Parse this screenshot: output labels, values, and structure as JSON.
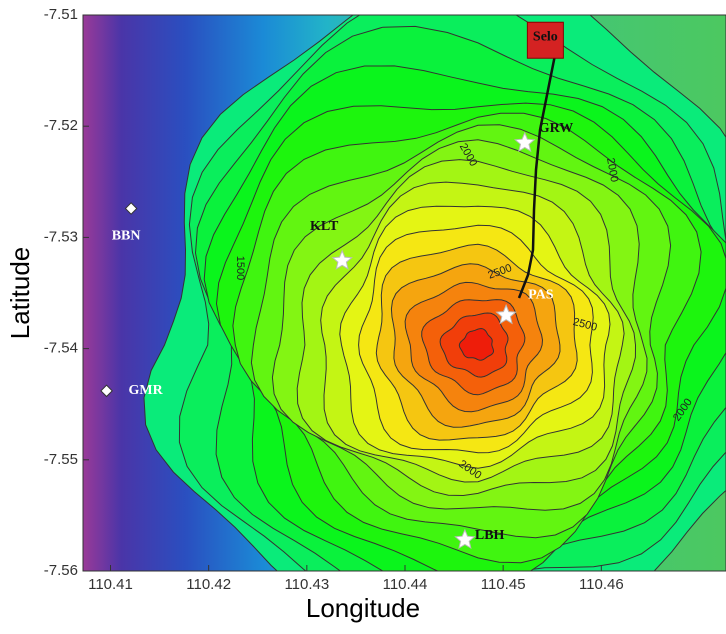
{
  "chart_data": {
    "type": "map",
    "xlabel": "Longitude",
    "ylabel": "Latitude",
    "xlim": [
      110.4072,
      110.4727
    ],
    "ylim": [
      -7.56,
      -7.51
    ],
    "xticks": [
      110.41,
      110.42,
      110.43,
      110.44,
      110.45,
      110.46
    ],
    "yticks": [
      -7.51,
      -7.52,
      -7.53,
      -7.54,
      -7.55,
      -7.56
    ],
    "stations": [
      {
        "name": "BBN",
        "lon": 110.4121,
        "lat": -7.5274,
        "symbol": "diamond"
      },
      {
        "name": "GMR",
        "lon": 110.4096,
        "lat": -7.5438,
        "symbol": "diamond"
      },
      {
        "name": "KLT",
        "lon": 110.4336,
        "lat": -7.5321,
        "symbol": "star"
      },
      {
        "name": "GRW",
        "lon": 110.4522,
        "lat": -7.5215,
        "symbol": "star"
      },
      {
        "name": "PAS",
        "lon": 110.4503,
        "lat": -7.537,
        "symbol": "star"
      },
      {
        "name": "LBH",
        "lon": 110.4461,
        "lat": -7.5572,
        "symbol": "star"
      },
      {
        "name": "Selo",
        "lon": 110.4543,
        "lat": -7.512,
        "symbol": "square"
      }
    ],
    "contour_labels": [
      2000,
      2000,
      2000,
      2000,
      2500,
      2500,
      1500
    ]
  }
}
